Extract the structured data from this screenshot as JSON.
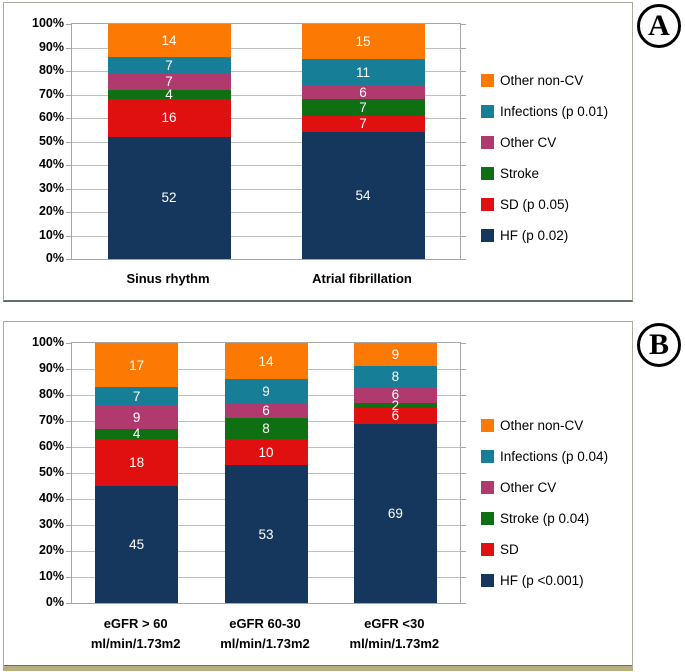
{
  "figure": {
    "badge_a": "A",
    "badge_b": "B"
  },
  "y_ticks": [
    "100%",
    "90%",
    "80%",
    "70%",
    "60%",
    "50%",
    "40%",
    "30%",
    "20%",
    "10%",
    "0%"
  ],
  "colors": {
    "hf_navy": "#16375D",
    "sd_red": "#E01010",
    "stroke_green": "#0E7012",
    "other_cv_magenta": "#B03A6E",
    "infections_teal": "#167E96",
    "other_non_cv_orange": "#FC7904",
    "gridline": "#BFBFBF",
    "plot_border": "#A6A6A6"
  },
  "chart_data": [
    {
      "type": "bar",
      "stacked": true,
      "units": "percent",
      "panel": "A",
      "title": "",
      "xlabel": "",
      "ylabel": "",
      "ylim": [
        0,
        100
      ],
      "grid": true,
      "legend_position": "right",
      "categories": [
        [
          "Sinus rhythm"
        ],
        [
          "Atrial fibrillation"
        ]
      ],
      "series": [
        {
          "name": "HF (p 0.02)",
          "color": "#16375D",
          "values": [
            52,
            54
          ]
        },
        {
          "name": "SD (p 0.05)",
          "color": "#E01010",
          "values": [
            16,
            7
          ]
        },
        {
          "name": "Stroke",
          "color": "#0E7012",
          "values": [
            4,
            7
          ]
        },
        {
          "name": "Other CV",
          "color": "#B03A6E",
          "values": [
            7,
            6
          ]
        },
        {
          "name": "Infections (p 0.01)",
          "color": "#167E96",
          "values": [
            7,
            11
          ]
        },
        {
          "name": "Other non-CV",
          "color": "#FC7904",
          "values": [
            14,
            15
          ]
        }
      ]
    },
    {
      "type": "bar",
      "stacked": true,
      "units": "percent",
      "panel": "B",
      "title": "",
      "xlabel": "",
      "ylabel": "",
      "ylim": [
        0,
        100
      ],
      "grid": true,
      "legend_position": "right",
      "categories": [
        [
          "eGFR > 60",
          "ml/min/1.73m2"
        ],
        [
          "eGFR 60-30",
          "ml/min/1.73m2"
        ],
        [
          "eGFR <30",
          "ml/min/1.73m2"
        ]
      ],
      "series": [
        {
          "name": "HF (p <0.001)",
          "color": "#16375D",
          "values": [
            45,
            53,
            69
          ]
        },
        {
          "name": "SD",
          "color": "#E01010",
          "values": [
            18,
            10,
            6
          ]
        },
        {
          "name": "Stroke (p 0.04)",
          "color": "#0E7012",
          "values": [
            4,
            8,
            2
          ]
        },
        {
          "name": "Other CV",
          "color": "#B03A6E",
          "values": [
            9,
            6,
            6
          ]
        },
        {
          "name": "Infections (p 0.04)",
          "color": "#167E96",
          "values": [
            7,
            9,
            8
          ]
        },
        {
          "name": "Other non-CV",
          "color": "#FC7904",
          "values": [
            17,
            14,
            9
          ]
        }
      ]
    }
  ]
}
